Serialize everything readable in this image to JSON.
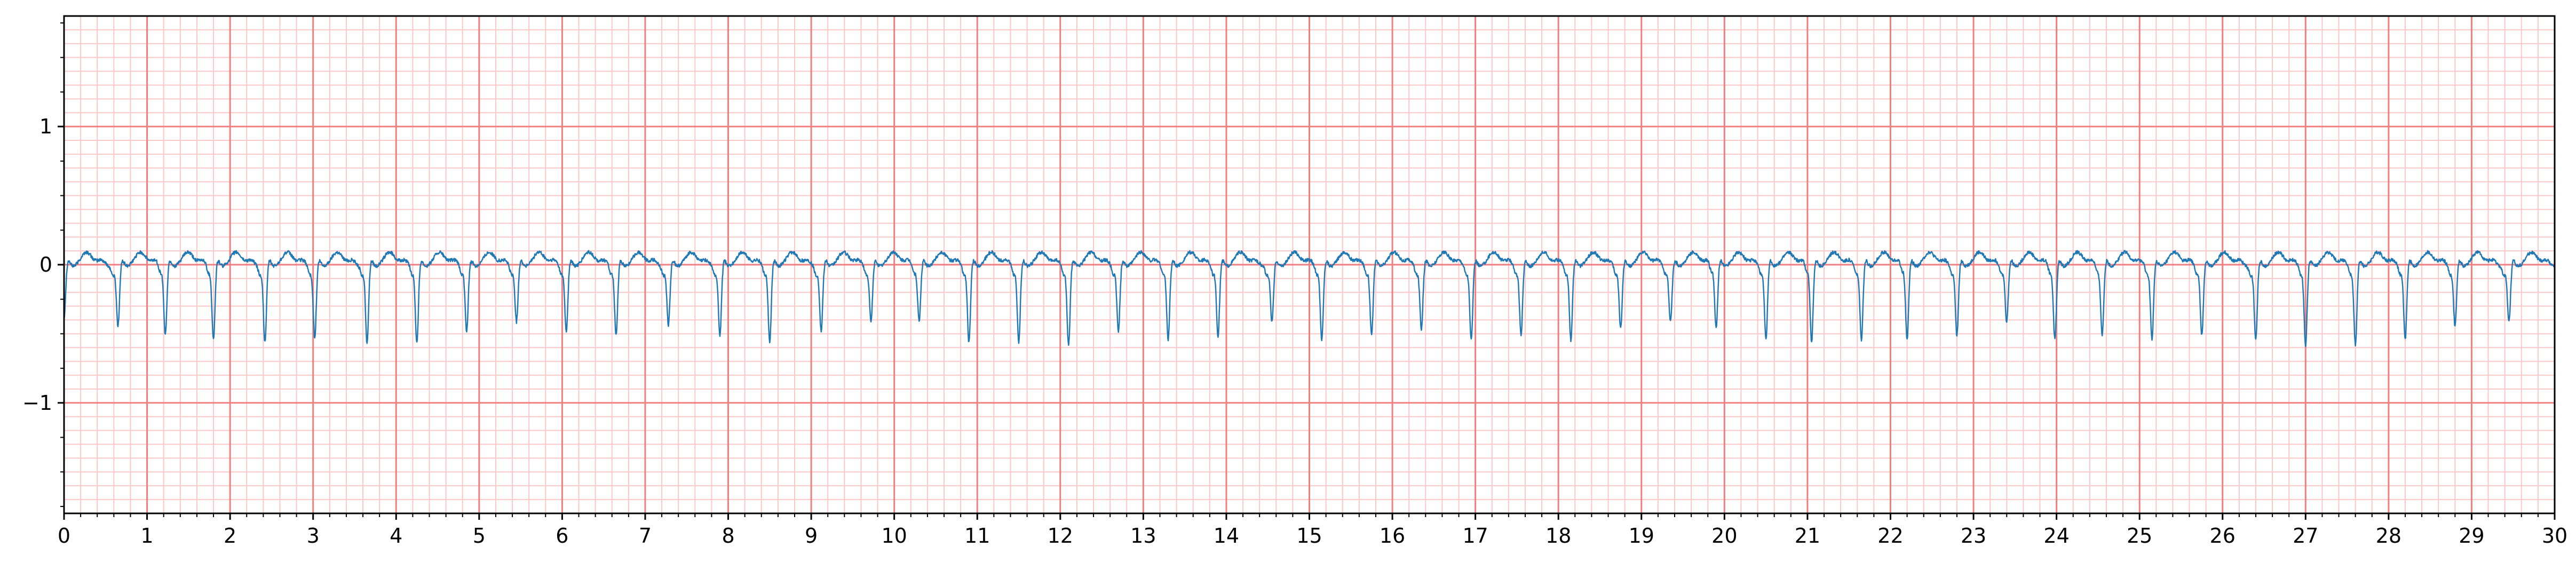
{
  "chart_data": {
    "type": "line",
    "title": "",
    "xlabel": "",
    "ylabel": "",
    "xlim": [
      0,
      30
    ],
    "ylim": [
      -1.8,
      1.8
    ],
    "grid": true,
    "grid_style": "ecg-paper",
    "x_ticks": [
      0,
      1,
      2,
      3,
      4,
      5,
      6,
      7,
      8,
      9,
      10,
      11,
      12,
      13,
      14,
      15,
      16,
      17,
      18,
      19,
      20,
      21,
      22,
      23,
      24,
      25,
      26,
      27,
      28,
      29,
      30
    ],
    "x_tick_labels": [
      "0",
      "1",
      "2",
      "3",
      "4",
      "5",
      "6",
      "7",
      "8",
      "9",
      "10",
      "11",
      "12",
      "13",
      "14",
      "15",
      "16",
      "17",
      "18",
      "19",
      "20",
      "21",
      "22",
      "23",
      "24",
      "25",
      "26",
      "27",
      "28",
      "29",
      "30"
    ],
    "y_ticks": [
      -1,
      0,
      1
    ],
    "y_tick_labels": [
      "−1",
      "0",
      "1"
    ],
    "major_grid_x_step": 1,
    "major_grid_y_step": 1,
    "minor_grid_x_step": 0.2,
    "minor_grid_y_step": 0.1,
    "colors": {
      "major_grid": "#f08080",
      "minor_grid": "#fcc7c7",
      "line": "#1f77b4",
      "frame": "#000000"
    },
    "series": [
      {
        "beat_times": [
          0.0,
          0.65,
          1.22,
          1.8,
          2.42,
          3.02,
          3.65,
          4.25,
          4.85,
          5.45,
          6.05,
          6.65,
          7.28,
          7.9,
          8.5,
          9.12,
          9.72,
          10.3,
          10.9,
          11.5,
          12.1,
          12.7,
          13.3,
          13.9,
          14.55,
          15.15,
          15.75,
          16.35,
          16.95,
          17.55,
          18.15,
          18.75,
          19.35,
          19.9,
          20.5,
          21.05,
          21.65,
          22.2,
          22.8,
          23.4,
          23.98,
          24.55,
          25.15,
          25.75,
          26.4,
          27.0,
          27.6,
          28.2,
          28.8,
          29.45
        ],
        "beat_depths": [
          -0.42,
          -0.48,
          -0.55,
          -0.58,
          -0.6,
          -0.57,
          -0.6,
          -0.6,
          -0.52,
          -0.45,
          -0.52,
          -0.55,
          -0.47,
          -0.55,
          -0.6,
          -0.52,
          -0.45,
          -0.45,
          -0.6,
          -0.6,
          -0.62,
          -0.52,
          -0.58,
          -0.55,
          -0.45,
          -0.58,
          -0.55,
          -0.5,
          -0.58,
          -0.55,
          -0.58,
          -0.5,
          -0.45,
          -0.5,
          -0.58,
          -0.6,
          -0.58,
          -0.58,
          -0.55,
          -0.45,
          -0.58,
          -0.55,
          -0.58,
          -0.55,
          -0.58,
          -0.62,
          -0.62,
          -0.58,
          -0.48,
          -0.45
        ]
      }
    ]
  }
}
